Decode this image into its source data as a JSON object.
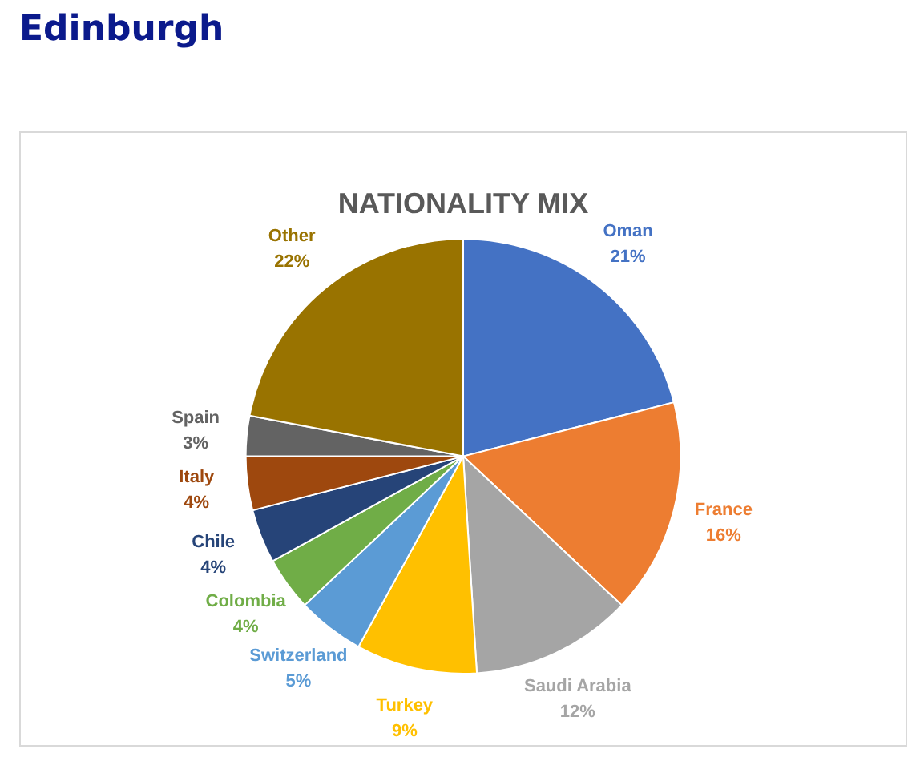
{
  "chart_data": {
    "type": "pie",
    "title": "NATIONALITY MIX",
    "annotations": [
      "Edinburgh"
    ],
    "categories": [
      "Oman",
      "France",
      "Saudi Arabia",
      "Turkey",
      "Switzerland",
      "Colombia",
      "Chile",
      "Italy",
      "Spain",
      "Other"
    ],
    "values": [
      21,
      16,
      12,
      9,
      5,
      4,
      4,
      4,
      3,
      22
    ],
    "value_labels": [
      "21%",
      "16%",
      "12%",
      "9%",
      "5%",
      "4%",
      "4%",
      "4%",
      "3%",
      "22%"
    ],
    "colors": [
      "#4472c4",
      "#ed7d31",
      "#a5a5a5",
      "#ffc000",
      "#5b9bd5",
      "#70ad47",
      "#264478",
      "#9e480e",
      "#636363",
      "#997300"
    ],
    "legend": false
  }
}
